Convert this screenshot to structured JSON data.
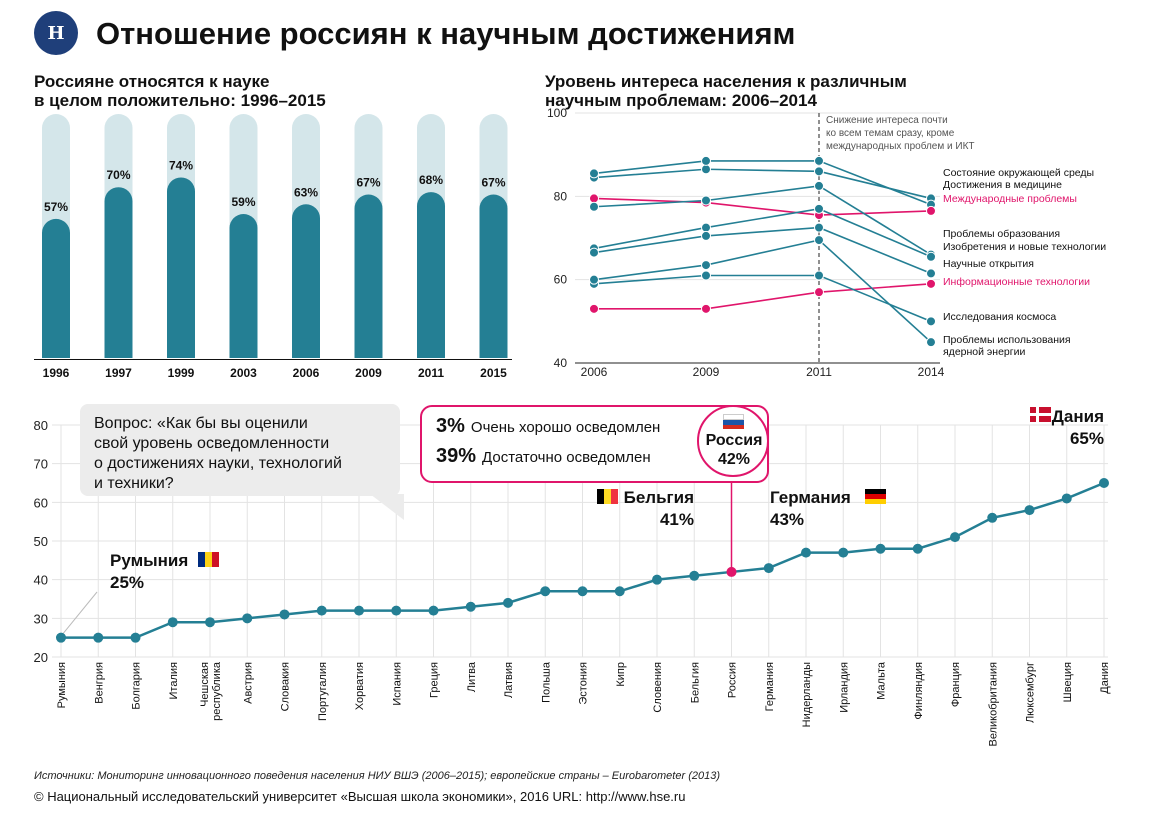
{
  "header": {
    "logo_text": "Н",
    "title": "Отношение россиян к научным достижениям"
  },
  "colors": {
    "teal": "#247f94",
    "light_teal": "#d4e6ea",
    "pink": "#e0156b",
    "grid": "#e3e3e3"
  },
  "chart_data": [
    {
      "type": "bar",
      "title": "Россияне относятся к науке\nв целом положительно: 1996–2015",
      "categories": [
        "1996",
        "1997",
        "1999",
        "2003",
        "2006",
        "2009",
        "2011",
        "2015"
      ],
      "values": [
        57,
        70,
        74,
        59,
        63,
        67,
        68,
        67
      ],
      "value_labels": [
        "57%",
        "70%",
        "74%",
        "59%",
        "63%",
        "67%",
        "68%",
        "67%"
      ],
      "ylim": [
        0,
        100
      ],
      "unit": "%"
    },
    {
      "type": "line",
      "title": "Уровень интереса населения к различным\nнаучным проблемам: 2006–2014",
      "x": [
        "2006",
        "2009",
        "2011",
        "2014"
      ],
      "ylim": [
        40,
        100
      ],
      "yticks": [
        40,
        60,
        80,
        100
      ],
      "annotation": "Снижение интереса почти\nко всем темам сразу, кроме\nмеждународных проблем и ИКТ",
      "annotation_x": "2011",
      "series": [
        {
          "name": "Состояние окружающей среды",
          "values": [
            84.5,
            86.5,
            86,
            79.5
          ],
          "color": "teal"
        },
        {
          "name": "Достижения в медицине",
          "values": [
            85.5,
            88.5,
            88.5,
            78
          ],
          "color": "teal"
        },
        {
          "name": "Международные проблемы",
          "values": [
            79.5,
            78.5,
            75.5,
            76.5
          ],
          "color": "pink"
        },
        {
          "name": "Проблемы образования",
          "values": [
            77.5,
            79,
            82.5,
            66
          ],
          "color": "teal"
        },
        {
          "name": "Изобретения и новые технологии",
          "values": [
            67.5,
            72.5,
            77,
            65.5
          ],
          "color": "teal"
        },
        {
          "name": "Научные открытия",
          "values": [
            66.5,
            70.5,
            72.5,
            61.5
          ],
          "color": "teal"
        },
        {
          "name": "Информационные технологии",
          "values": [
            53,
            53,
            57,
            59
          ],
          "color": "pink"
        },
        {
          "name": "Исследования космоса",
          "values": [
            59,
            61,
            61,
            50
          ],
          "color": "teal"
        },
        {
          "name": "Проблемы использования\nядерной энергии",
          "values": [
            60,
            63.5,
            69.5,
            45
          ],
          "color": "teal"
        }
      ]
    },
    {
      "type": "line",
      "categories": [
        "Румыния",
        "Венгрия",
        "Болгария",
        "Италия",
        "Чешская\nреспублика",
        "Австрия",
        "Словакия",
        "Португалия",
        "Хорватия",
        "Испания",
        "Греция",
        "Литва",
        "Латвия",
        "Польша",
        "Эстония",
        "Кипр",
        "Словения",
        "Бельгия",
        "Россия",
        "Германия",
        "Нидерланды",
        "Ирландия",
        "Мальта",
        "Финляндия",
        "Франция",
        "Великобритания",
        "Люксембург",
        "Швеция",
        "Дания"
      ],
      "values": [
        25,
        25,
        25,
        29,
        29,
        30,
        31,
        32,
        32,
        32,
        32,
        33,
        34,
        37,
        37,
        37,
        40,
        41,
        42,
        43,
        47,
        47,
        48,
        48,
        51,
        56,
        58,
        61,
        65
      ],
      "ylim": [
        20,
        80
      ],
      "yticks": [
        20,
        30,
        40,
        50,
        60,
        70,
        80
      ],
      "highlight": "Россия"
    }
  ],
  "bottom": {
    "question": "Вопрос: «Как бы вы оценили\nсвой уровень осведомленности\nо достижениях науки, технологий\nи техники?",
    "legend": [
      {
        "pct": "3%",
        "text": "Очень хорошо осведомлен"
      },
      {
        "pct": "39%",
        "text": "Достаточно осведомлен"
      }
    ],
    "callouts": {
      "russia": "Россия\n42%",
      "romania": "Румыния\n25%",
      "belgium": "Бельгия\n41%",
      "germany": "Германия\n43%",
      "denmark": "Дания\n65%"
    }
  },
  "footer": {
    "source": "Источники: Мониторинг инновационного поведения населения НИУ ВШЭ (2006–2015); европейские страны – Eurobarometer (2013)",
    "copyright": "© Национальный исследовательский университет «Высшая школа экономики», 2016     URL: http://www.hse.ru"
  }
}
